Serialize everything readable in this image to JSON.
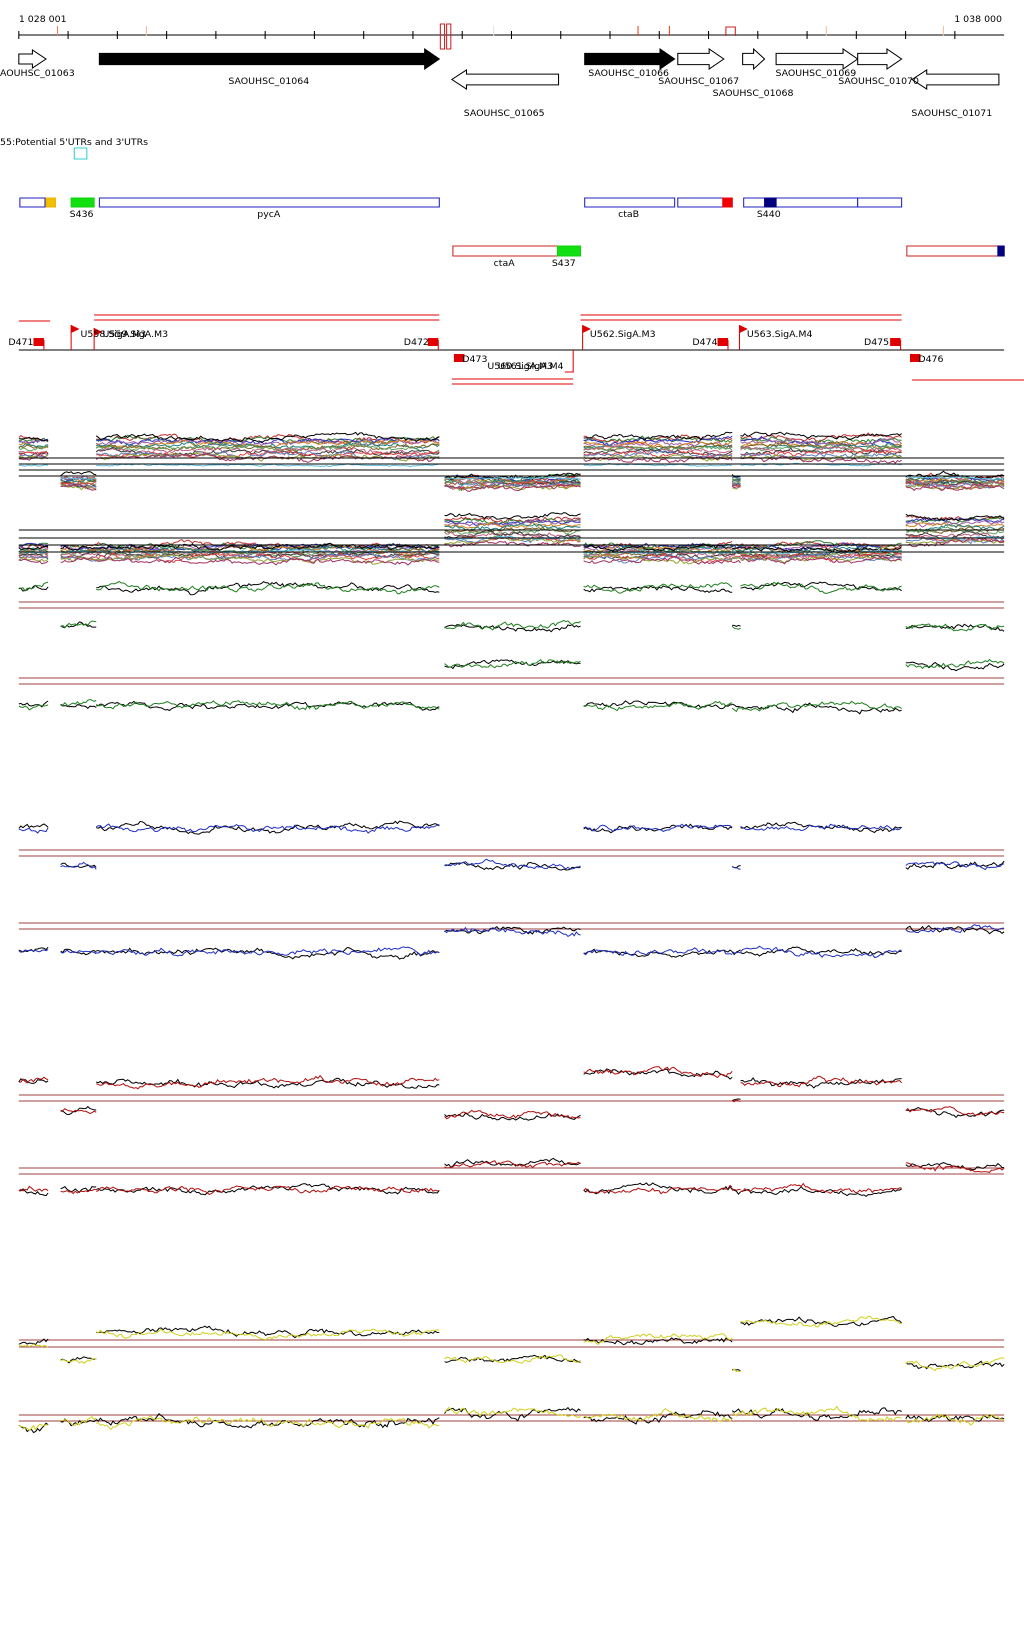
{
  "ruler": {
    "start": "1 028 001",
    "end": "1 038 000"
  },
  "genes": [
    "AOUHSC_01063",
    "SAOUHSC_01064",
    "SAOUHSC_01065",
    "SAOUHSC_01066",
    "SAOUHSC_01067",
    "SAOUHSC_01068",
    "SAOUHSC_01069",
    "SAOUHSC_01070",
    "SAOUHSC_01071"
  ],
  "track_title": "55:Potential 5'UTRs and 3'UTRs",
  "features": [
    "S436",
    "pycA",
    "ctaB",
    "S440",
    "ctaA",
    "S437"
  ],
  "utrs": [
    "D471",
    "U558.SigA.M3",
    "U559.SigA.M3",
    "D472",
    "D473",
    "U560.SigA.M3",
    "U561.SigA.M4",
    "U562.SigA.M3",
    "D474",
    "U563.SigA.M4",
    "D475",
    "D476"
  ]
}
